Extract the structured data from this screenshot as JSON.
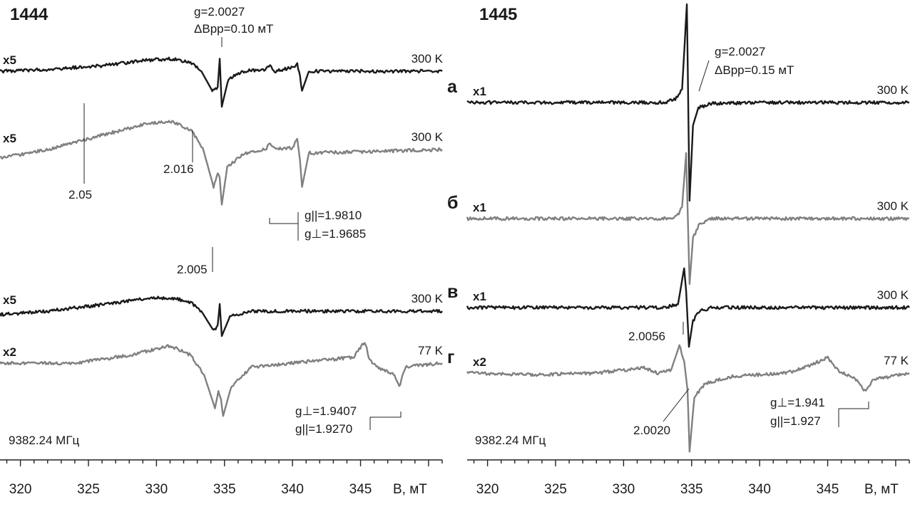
{
  "chart_data": [
    {
      "type": "line",
      "panel_id": "1444",
      "xlabel": "B, мТ",
      "x_ticks": [
        "320",
        "325",
        "330",
        "335",
        "340",
        "345"
      ],
      "xlim": [
        318.5,
        351
      ],
      "frequency": "9382.24 МГц",
      "colors": {
        "dark": "#1a1a1a",
        "gray": "#808080"
      },
      "series": [
        {
          "gain": "x5",
          "temperature": "300 K",
          "color": "dark",
          "points": [
            [
              318.5,
              0.0
            ],
            [
              322,
              0.05
            ],
            [
              326,
              0.15
            ],
            [
              329,
              0.3
            ],
            [
              331,
              0.35
            ],
            [
              332.5,
              0.25
            ],
            [
              333.3,
              0.0
            ],
            [
              334.1,
              -0.55
            ],
            [
              334.5,
              -0.45
            ],
            [
              334.65,
              0.35
            ],
            [
              334.8,
              -1.0
            ],
            [
              335.3,
              -0.2
            ],
            [
              336.5,
              0.0
            ],
            [
              338,
              0.05
            ],
            [
              338.35,
              0.15
            ],
            [
              338.7,
              0.0
            ],
            [
              340,
              0.1
            ],
            [
              340.35,
              0.2
            ],
            [
              340.55,
              -0.15
            ],
            [
              340.7,
              -0.55
            ],
            [
              341.2,
              0.0
            ],
            [
              351,
              0.0
            ]
          ]
        },
        {
          "gain": "x5",
          "temperature": "300 K",
          "color": "gray",
          "points": [
            [
              318.5,
              -0.25
            ],
            [
              322,
              0.0
            ],
            [
              326,
              0.4
            ],
            [
              329,
              0.7
            ],
            [
              331,
              0.8
            ],
            [
              332.5,
              0.55
            ],
            [
              333.4,
              0.05
            ],
            [
              334.2,
              -1.05
            ],
            [
              334.5,
              -0.7
            ],
            [
              334.65,
              -0.8
            ],
            [
              334.8,
              -1.55
            ],
            [
              335.2,
              -0.5
            ],
            [
              336.5,
              -0.1
            ],
            [
              338,
              0.0
            ],
            [
              338.35,
              0.2
            ],
            [
              338.7,
              0.0
            ],
            [
              340,
              0.05
            ],
            [
              340.35,
              0.3
            ],
            [
              340.55,
              -0.3
            ],
            [
              340.7,
              -1.05
            ],
            [
              341.2,
              -0.1
            ],
            [
              351,
              0.0
            ]
          ]
        },
        {
          "gain": "x5",
          "temperature": "300 K",
          "color": "dark",
          "points": [
            [
              318.5,
              -0.1
            ],
            [
              322,
              0.0
            ],
            [
              326,
              0.18
            ],
            [
              329,
              0.35
            ],
            [
              331,
              0.38
            ],
            [
              332.5,
              0.25
            ],
            [
              333.3,
              0.0
            ],
            [
              334.2,
              -0.55
            ],
            [
              334.5,
              -0.4
            ],
            [
              334.65,
              0.2
            ],
            [
              334.8,
              -0.7
            ],
            [
              335.4,
              -0.15
            ],
            [
              337,
              0.0
            ],
            [
              351,
              0.0
            ]
          ]
        },
        {
          "gain": "x2",
          "temperature": "77 K",
          "color": "gray",
          "points": [
            [
              318.5,
              0.0
            ],
            [
              324,
              0.0
            ],
            [
              328,
              0.2
            ],
            [
              331,
              0.45
            ],
            [
              332.5,
              0.2
            ],
            [
              333.5,
              -0.3
            ],
            [
              334.3,
              -1.15
            ],
            [
              334.55,
              -0.7
            ],
            [
              334.75,
              -0.9
            ],
            [
              334.9,
              -1.35
            ],
            [
              335.5,
              -0.6
            ],
            [
              337,
              -0.1
            ],
            [
              340,
              0.0
            ],
            [
              344.5,
              0.15
            ],
            [
              345.3,
              0.55
            ],
            [
              345.7,
              0.05
            ],
            [
              346.5,
              -0.15
            ],
            [
              347.5,
              -0.3
            ],
            [
              347.85,
              -0.6
            ],
            [
              348.3,
              -0.1
            ],
            [
              351,
              0.0
            ]
          ]
        }
      ],
      "annotations": [
        {
          "text": "g=2.0027",
          "text2": "ΔBpp=0.10 мТ"
        },
        {
          "text": "2.05"
        },
        {
          "text": "2.016"
        },
        {
          "text": "2.005"
        },
        {
          "text": "g||=1.9810",
          "text2": "g⊥=1.9685"
        },
        {
          "text": "g⊥=1.9407",
          "text2": "g||=1.9270"
        }
      ]
    },
    {
      "type": "line",
      "panel_id": "1445",
      "xlabel": "B, мТ",
      "x_ticks": [
        "320",
        "325",
        "330",
        "335",
        "340",
        "345"
      ],
      "xlim": [
        318.5,
        351
      ],
      "frequency": "9382.24 МГц",
      "colors": {
        "dark": "#1a1a1a",
        "gray": "#808080"
      },
      "series": [
        {
          "letter": "а",
          "gain": "x1",
          "temperature": "300 K",
          "color": "dark",
          "points": [
            [
              318.5,
              0.0
            ],
            [
              333,
              0.0
            ],
            [
              333.8,
              0.1
            ],
            [
              334.3,
              0.4
            ],
            [
              334.65,
              3.0
            ],
            [
              334.85,
              -3.0
            ],
            [
              335.1,
              -0.7
            ],
            [
              335.5,
              -0.15
            ],
            [
              336.5,
              -0.03
            ],
            [
              340,
              0.0
            ],
            [
              351,
              0.0
            ]
          ]
        },
        {
          "letter": "б",
          "gain": "x1",
          "temperature": "300 K",
          "color": "gray",
          "points": [
            [
              318.5,
              0.0
            ],
            [
              333,
              0.0
            ],
            [
              333.9,
              0.05
            ],
            [
              334.3,
              0.35
            ],
            [
              334.6,
              2.0
            ],
            [
              334.85,
              -2.0
            ],
            [
              335.1,
              -0.6
            ],
            [
              335.6,
              -0.15
            ],
            [
              336.5,
              0.0
            ],
            [
              351,
              0.0
            ]
          ]
        },
        {
          "letter": "в",
          "gain": "x1",
          "temperature": "300 K",
          "color": "dark",
          "points": [
            [
              318.5,
              0.0
            ],
            [
              333,
              0.0
            ],
            [
              334,
              0.1
            ],
            [
              334.45,
              1.2
            ],
            [
              334.6,
              0.5
            ],
            [
              334.8,
              -1.2
            ],
            [
              335.1,
              -0.4
            ],
            [
              335.6,
              -0.1
            ],
            [
              336.5,
              0.0
            ],
            [
              351,
              0.0
            ]
          ]
        },
        {
          "letter": "г",
          "gain": "x2",
          "temperature": "77 K",
          "color": "gray",
          "points": [
            [
              318.5,
              0.0
            ],
            [
              324,
              -0.05
            ],
            [
              328,
              0.0
            ],
            [
              331.5,
              0.15
            ],
            [
              332.5,
              0.0
            ],
            [
              333.5,
              0.1
            ],
            [
              334.1,
              0.8
            ],
            [
              334.45,
              0.35
            ],
            [
              334.7,
              -0.5
            ],
            [
              334.85,
              -2.3
            ],
            [
              335.2,
              -0.7
            ],
            [
              336,
              -0.3
            ],
            [
              338,
              -0.1
            ],
            [
              342,
              0.0
            ],
            [
              343.5,
              0.2
            ],
            [
              345,
              0.45
            ],
            [
              345.8,
              0.05
            ],
            [
              347,
              -0.15
            ],
            [
              347.8,
              -0.55
            ],
            [
              348.3,
              -0.2
            ],
            [
              351,
              0.0
            ]
          ]
        }
      ],
      "annotations": [
        {
          "text": "g=2.0027",
          "text2": "ΔBpp=0.15 мТ"
        },
        {
          "text": "2.0056"
        },
        {
          "text": "2.0020"
        },
        {
          "text": "g⊥=1.941",
          "text2": "g||=1.927"
        }
      ]
    }
  ]
}
